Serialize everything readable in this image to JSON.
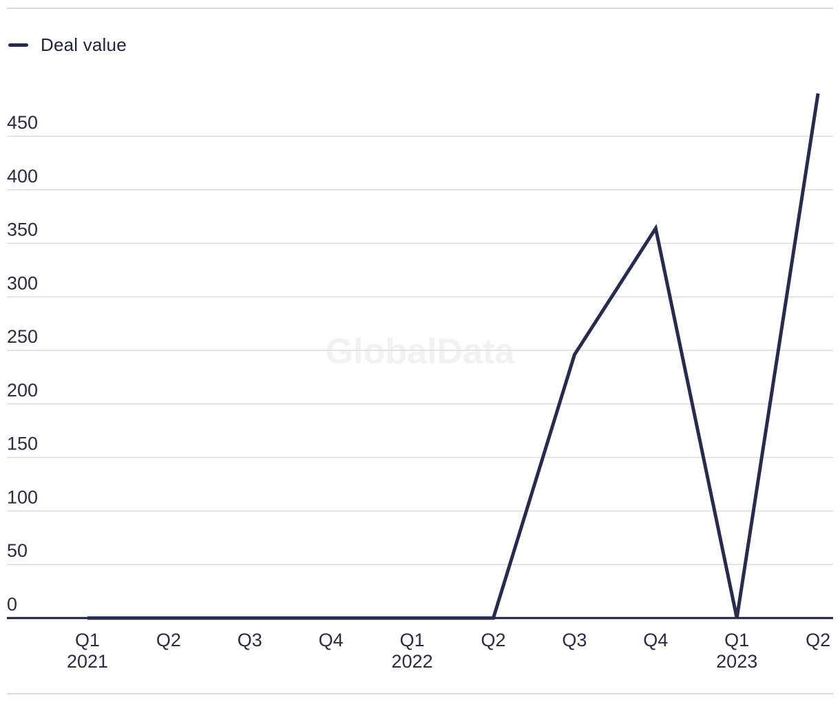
{
  "page": {
    "background": "#ffffff"
  },
  "colors": {
    "line": "#272b4d",
    "grid": "#dcdcdc",
    "zero_axis": "#191d3a",
    "axis_text": "#2b2b44",
    "legend_text": "#20243f",
    "border": "#d9d9d9",
    "watermark": "#f2f2f2"
  },
  "legend": {
    "items": [
      {
        "label": "Deal value",
        "color": "#272b4d"
      }
    ]
  },
  "watermark": {
    "text": "GlobalData"
  },
  "chart_data": {
    "type": "line",
    "title": "",
    "xlabel": "",
    "ylabel": "",
    "categories": [
      "Q1",
      "Q2",
      "Q3",
      "Q4",
      "Q1",
      "Q2",
      "Q3",
      "Q4",
      "Q1",
      "Q2"
    ],
    "year_labels": [
      {
        "index": 0,
        "label": "2021"
      },
      {
        "index": 4,
        "label": "2022"
      },
      {
        "index": 8,
        "label": "2023"
      }
    ],
    "series": [
      {
        "name": "Deal value",
        "values": [
          0,
          0,
          0,
          0,
          0,
          0,
          246,
          364,
          0,
          490
        ]
      }
    ],
    "y_ticks": [
      0,
      50,
      100,
      150,
      200,
      250,
      300,
      350,
      400,
      450
    ],
    "ylim": [
      0,
      500
    ],
    "grid": true,
    "legend_position": "top-left"
  }
}
